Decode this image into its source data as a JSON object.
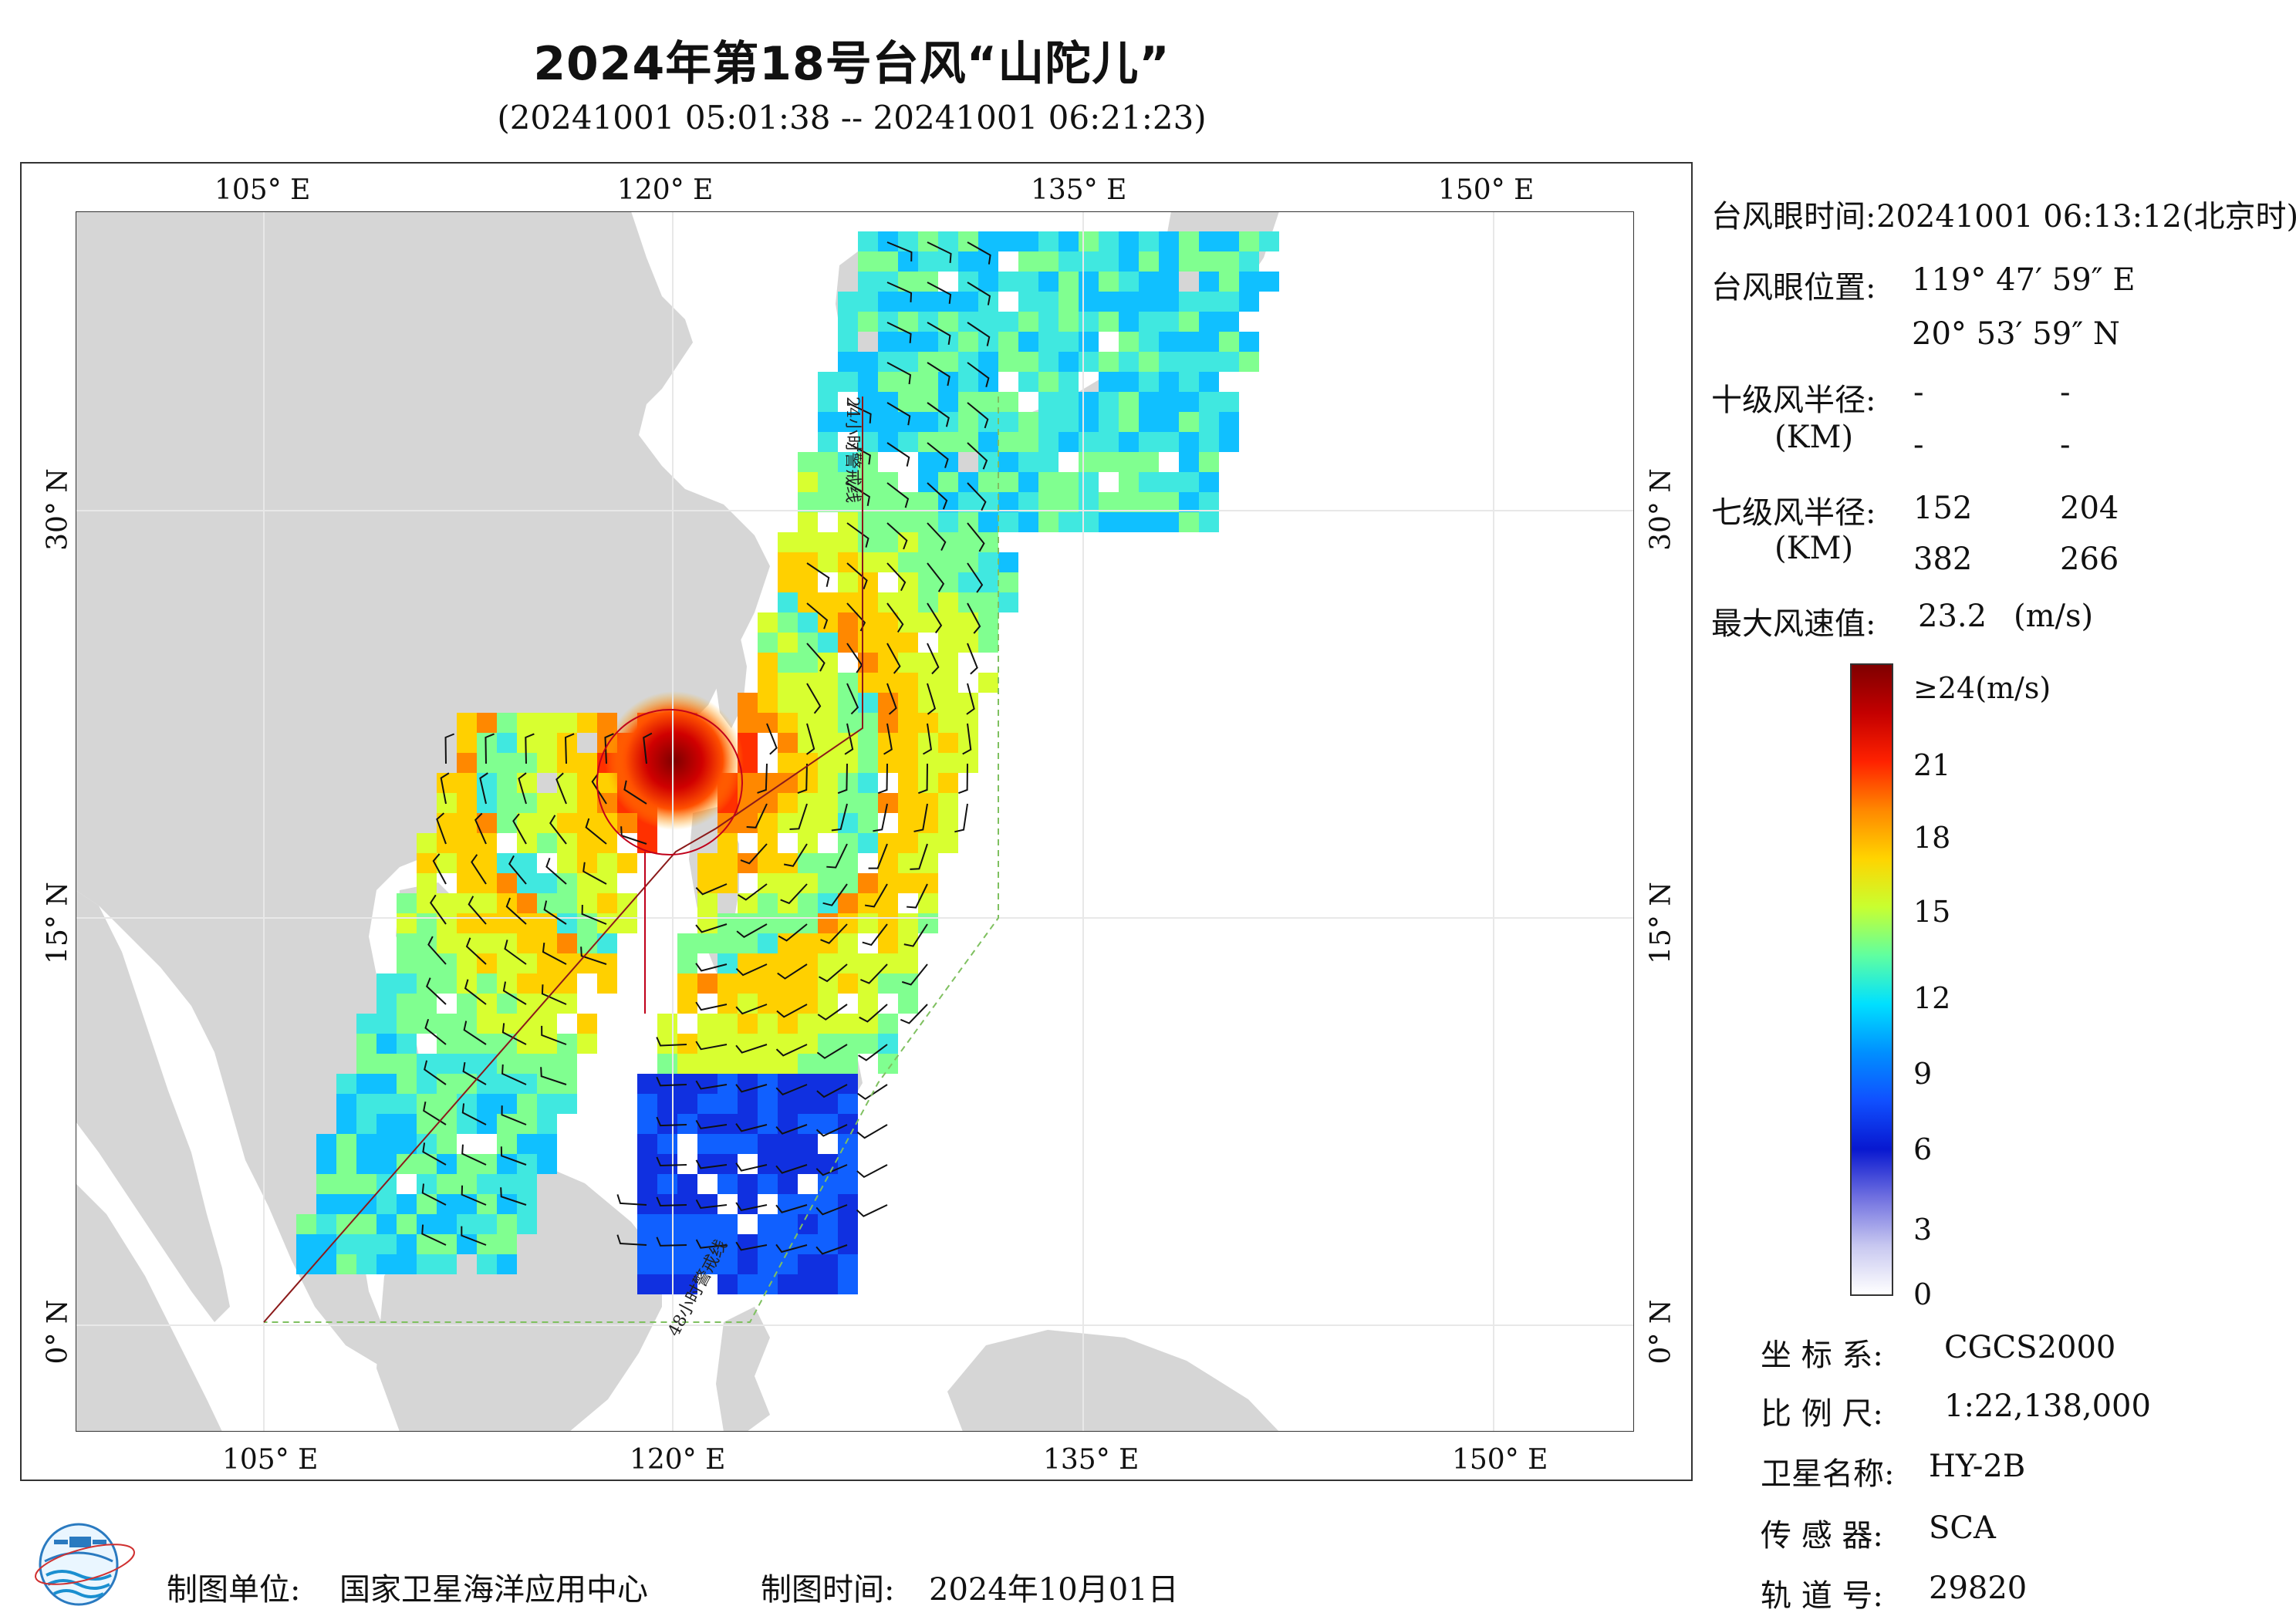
{
  "title": "2024年第18号台风“山陀儿”",
  "subtitle": "(20241001 05:01:38 -- 20241001 06:21:23)",
  "map": {
    "lon_ticks": [
      "105° E",
      "120° E",
      "135° E",
      "150° E"
    ],
    "lat_ticks": [
      "30° N",
      "15° N",
      "0° N"
    ],
    "line_24h_label": "24小时警戒线",
    "line_48h_label": "48小时警戒线",
    "colors": {
      "ocean": "#ffffff",
      "land": "#d6d6d6",
      "track": "#c0001a",
      "line24": "#8b1a1a",
      "line48": "#7fc060"
    }
  },
  "info": {
    "eye_time_label": "台风眼时间:",
    "eye_time_value": "20241001 06:13:12(北京时)",
    "eye_pos_label": "台风眼位置:",
    "eye_lon": "119° 47′ 59″ E",
    "eye_lat": "20° 53′ 59″ N",
    "r10_label": "十级风半径:",
    "r10_unit": "(KM)",
    "r10_values": [
      "-",
      "-",
      "-",
      "-"
    ],
    "r7_label": "七级风半径:",
    "r7_unit": "(KM)",
    "r7_values": [
      "152",
      "204",
      "382",
      "266"
    ],
    "max_wind_label": "最大风速值:",
    "max_wind_value": "23.2",
    "max_wind_unit": "(m/s)"
  },
  "colorbar": {
    "labels": [
      "≥24(m/s)",
      "21",
      "18",
      "15",
      "12",
      "9",
      "6",
      "3",
      "0"
    ],
    "stops": [
      "#7f0000",
      "#c40000",
      "#ff2200",
      "#ff8800",
      "#ffd400",
      "#c8ff30",
      "#60ffa0",
      "#00e0ff",
      "#0090ff",
      "#1050ff",
      "#0818d0",
      "#7070e0",
      "#c8c8f0",
      "#ffffff"
    ]
  },
  "meta": {
    "crs_label": "坐 标 系:",
    "crs_value": "CGCS2000",
    "scale_label": "比 例 尺:",
    "scale_value": "1:22,138,000",
    "sat_label": "卫星名称:",
    "sat_value": "HY-2B",
    "sensor_label": "传 感 器:",
    "sensor_value": "SCA",
    "orbit_label": "轨 道 号:",
    "orbit_value": "29820"
  },
  "footer": {
    "maker_label": "制图单位:",
    "maker_value": "国家卫星海洋应用中心",
    "date_label": "制图时间:",
    "date_value": "2024年10月01日"
  }
}
